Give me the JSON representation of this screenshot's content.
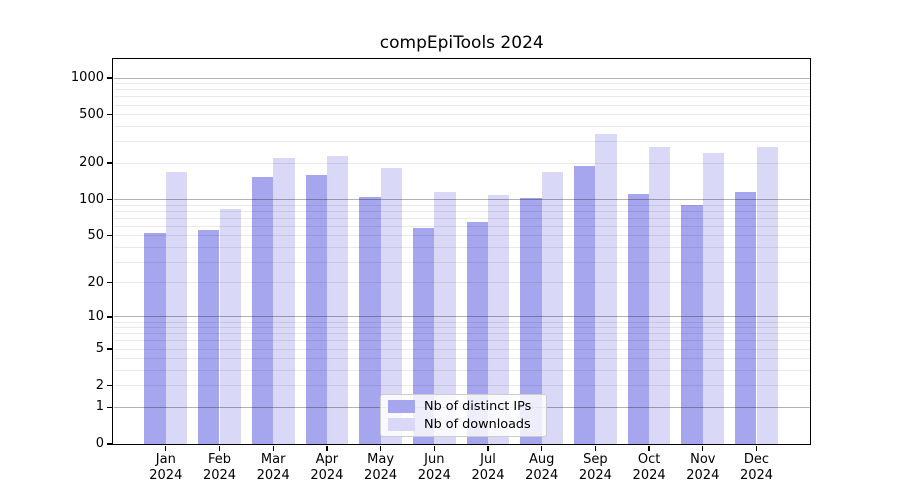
{
  "chart": {
    "title": "compEpiTools 2024"
  },
  "chart_data": {
    "type": "bar",
    "title": "compEpiTools 2024",
    "categories": [
      "Jan 2024",
      "Feb 2024",
      "Mar 2024",
      "Apr 2024",
      "May 2024",
      "Jun 2024",
      "Jul 2024",
      "Aug 2024",
      "Sep 2024",
      "Oct 2024",
      "Nov 2024",
      "Dec 2024"
    ],
    "series": [
      {
        "name": "Nb of distinct IPs",
        "color": "#a6a6ee",
        "values": [
          53,
          56,
          155,
          160,
          105,
          58,
          65,
          103,
          190,
          112,
          90,
          115
        ]
      },
      {
        "name": "Nb of downloads",
        "color": "#d9d9f7",
        "values": [
          170,
          84,
          220,
          230,
          183,
          115,
          110,
          170,
          350,
          270,
          240,
          270
        ]
      }
    ],
    "xlabel": "",
    "ylabel": "",
    "y_scale": "log1p",
    "y_ticks": [
      0,
      1,
      2,
      5,
      10,
      20,
      50,
      100,
      200,
      500,
      1000
    ],
    "ylim": [
      0,
      1420
    ],
    "grid": "horizontal-major-minor",
    "legend_position": "inside-bottom-center",
    "background_color": "#ffffff",
    "gridline_major_color": "#b0b0b0",
    "gridline_minor_color": "#e9e9e9"
  }
}
